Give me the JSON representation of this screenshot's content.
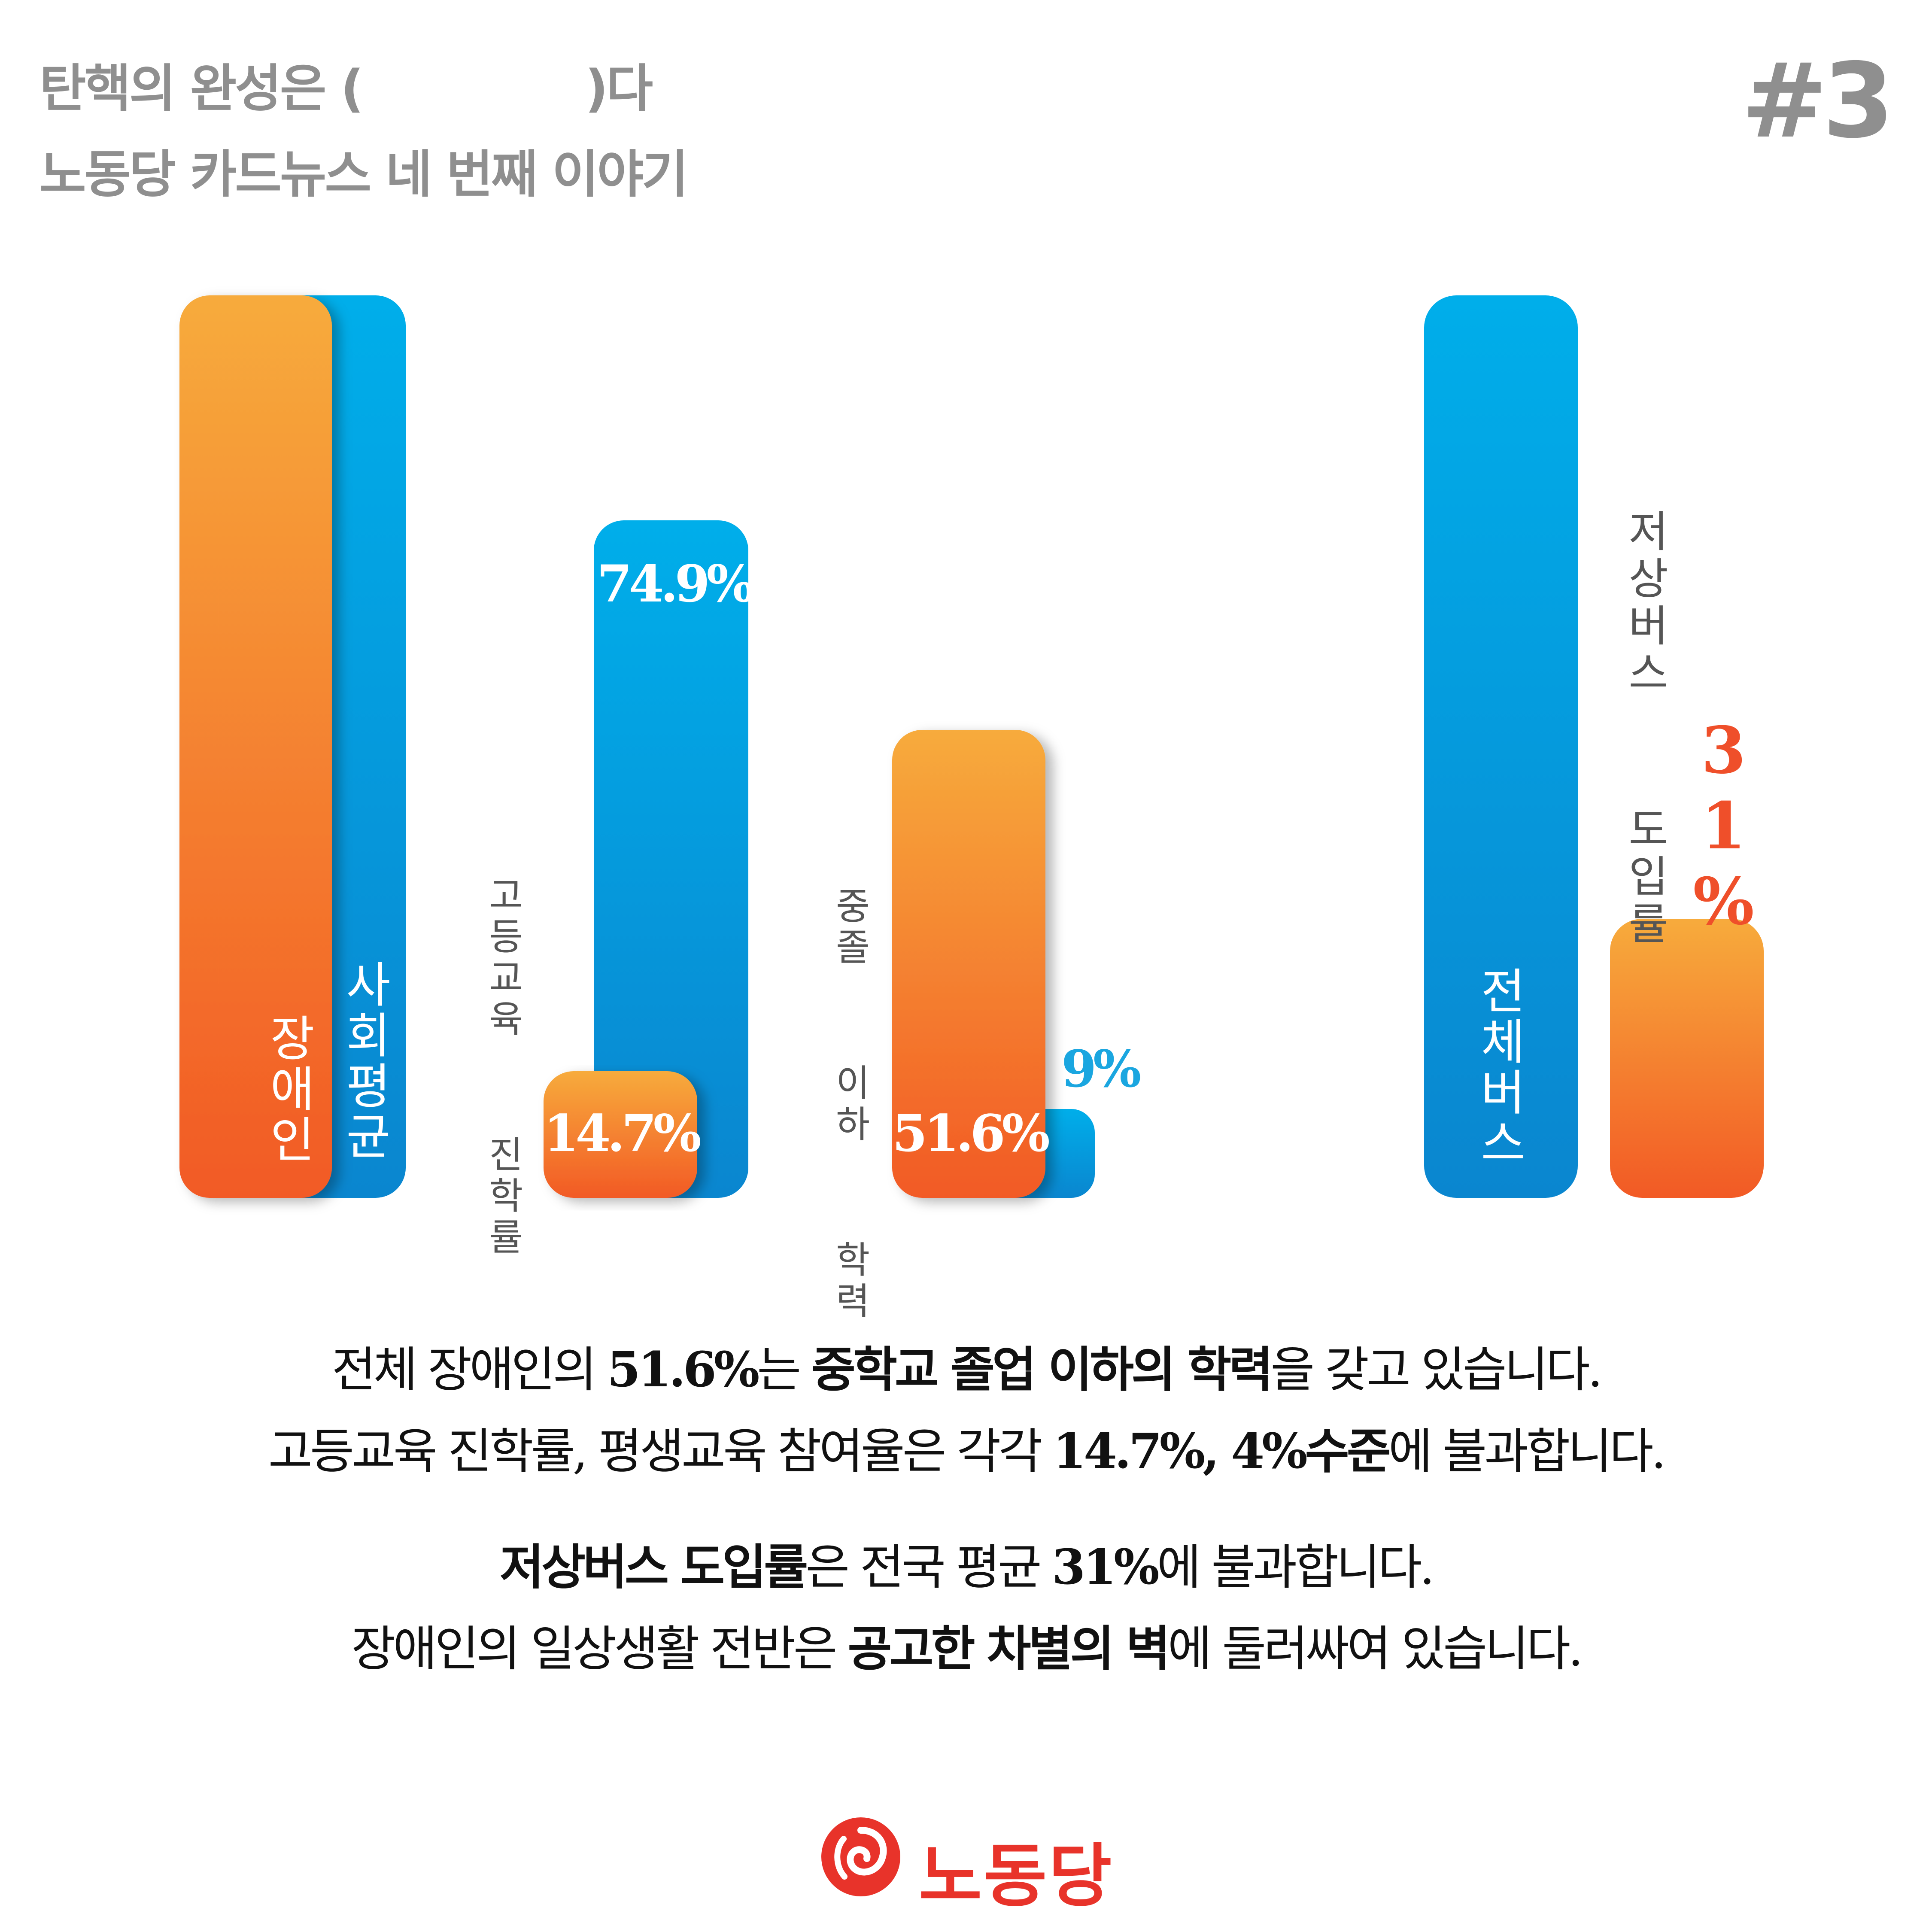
{
  "header": {
    "line1": "탄핵의 완성은 (              )다",
    "line2": "노동당 카드뉴스 네 번째 이야기",
    "page_number": "#3"
  },
  "colors": {
    "orange_top": "#f7ab3c",
    "orange_bottom": "#f25a25",
    "blue_top": "#00aeea",
    "blue_bottom": "#0a86cf",
    "header_gray": "#8f8f8f",
    "accent_red": "#ef4f2a",
    "brand_red": "#e8332a"
  },
  "chart_data": [
    {
      "type": "bar",
      "categories": [
        "장애인",
        "사회평균"
      ],
      "values": [
        null,
        null
      ]
    },
    {
      "type": "bar",
      "categories": [
        "고등교육 진학률"
      ],
      "series": [
        {
          "name": "장애인",
          "values": [
            14.7
          ],
          "label": "14.7%"
        },
        {
          "name": "사회평균",
          "values": [
            74.9
          ],
          "label": "74.9%"
        }
      ]
    },
    {
      "type": "bar",
      "categories": [
        "중졸 이하 학력"
      ],
      "series": [
        {
          "name": "장애인",
          "values": [
            51.6
          ],
          "label": "51.6%"
        },
        {
          "name": "사회평균",
          "values": [
            9
          ],
          "label": "9%"
        }
      ]
    },
    {
      "type": "bar",
      "categories": [
        "전체버스",
        "저상버스 도입률"
      ],
      "values": [
        100,
        31
      ],
      "value_labels": [
        "",
        "31%"
      ]
    }
  ],
  "labels": {
    "disabled": "장애인",
    "society_avg": "사회평균",
    "higher_edu": "고등교육  진학률",
    "middle_school": "중졸  이하  학력",
    "all_bus": "전체버스",
    "lowfloor_bus": "저상버스  도입률",
    "val_higher_edu_disabled": "14.7%",
    "val_higher_edu_avg": "74.9%",
    "val_middle_disabled": "51.6%",
    "val_middle_avg": "9%",
    "val_lowfloor": "31%"
  },
  "body": {
    "p1_line1_a": "전체 장애인의 ",
    "p1_line1_b": "51.6%",
    "p1_line1_c": "는 ",
    "p1_line1_d": "중학교 졸업 이하의 학력",
    "p1_line1_e": "을 갖고 있습니다.",
    "p1_line2_a": "고등교육 진학률, 평생교육 참여율은 각각 ",
    "p1_line2_b": "14.7%, 4%수준",
    "p1_line2_c": "에 불과합니다.",
    "p2_line1_a": "저상버스 도입률",
    "p2_line1_b": "은 전국 평균 ",
    "p2_line1_c": "31%",
    "p2_line1_d": "에 불과합니다.",
    "p2_line2_a": "장애인의 일상생활 전반은 ",
    "p2_line2_b": "공고한 차별의 벽",
    "p2_line2_c": "에 둘러싸여 있습니다."
  },
  "footer": {
    "logo_icon": "rose-icon",
    "logo_text": "노동당"
  }
}
